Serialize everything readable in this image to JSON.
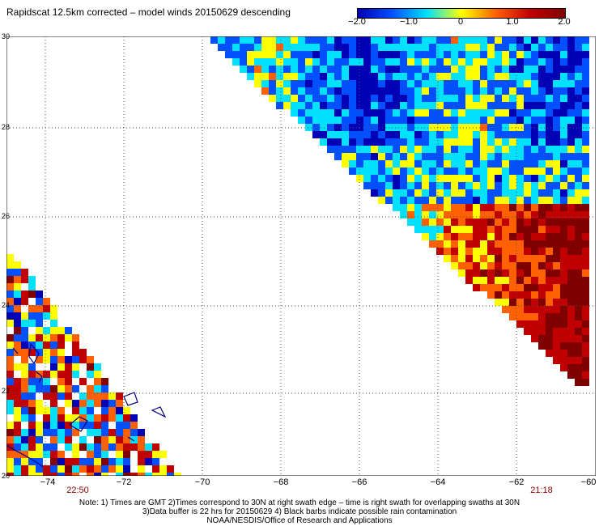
{
  "title": "Rapidscat 12.5km corrected – model winds 20150629 descending",
  "colorbar": {
    "ticks": [
      "−2.0",
      "−1.0",
      "0",
      "1.0",
      "2.0"
    ],
    "colors": [
      "#0000b4",
      "#0050ff",
      "#00e0ff",
      "#ffff00",
      "#ff6000",
      "#c00000",
      "#800000"
    ]
  },
  "axes": {
    "lat_ticks": [
      "30",
      "28",
      "26",
      "24",
      "22",
      "20"
    ],
    "lon_ticks": [
      "−74",
      "−72",
      "−70",
      "−68",
      "−66",
      "−64",
      "−62",
      "−60"
    ]
  },
  "times": {
    "left": "22:50",
    "right": "21:18"
  },
  "notes": {
    "line1": "Note: 1) Times are GMT 2)Times correspond to 30N at right swath edge – time is right swath for overlapping swaths at 30N",
    "line2": "3)Data buffer is 22 hrs for 20150629 4) Black barbs indicate possible rain contamination",
    "line3": "NOAA/NESDIS/Office of Research and Applications"
  }
}
